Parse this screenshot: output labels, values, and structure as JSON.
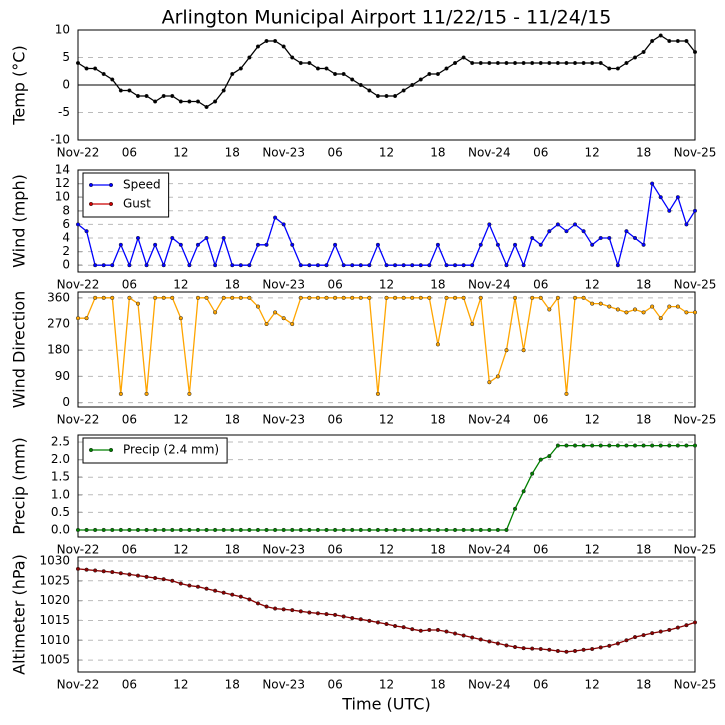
{
  "chart_data": [
    {
      "type": "line",
      "title": "Arlington Municipal Airport 11/22/15 - 11/24/15",
      "ylabel": "Temp (°C)",
      "categories": [
        "Nov-22",
        null,
        null,
        null,
        null,
        null,
        "06",
        null,
        null,
        null,
        null,
        null,
        "12",
        null,
        null,
        null,
        null,
        null,
        "18",
        null,
        null,
        null,
        null,
        null,
        "Nov-23",
        null,
        null,
        null,
        null,
        null,
        "06",
        null,
        null,
        null,
        null,
        null,
        "12",
        null,
        null,
        null,
        null,
        null,
        "18",
        null,
        null,
        null,
        null,
        null,
        "Nov-24",
        null,
        null,
        null,
        null,
        null,
        "06",
        null,
        null,
        null,
        null,
        null,
        "12",
        null,
        null,
        null,
        null,
        null,
        "18",
        null,
        null,
        null,
        null,
        null,
        "Nov-25"
      ],
      "values": [
        4,
        3,
        3,
        2,
        1,
        -1,
        -1,
        -2,
        -2,
        -3,
        -2,
        -2,
        -3,
        -3,
        -3,
        -4,
        -3,
        -1,
        2,
        3,
        5,
        7,
        8,
        8,
        7,
        5,
        4,
        4,
        3,
        3,
        2,
        2,
        1,
        0,
        -1,
        -2,
        -2,
        -2,
        -1,
        0,
        1,
        2,
        2,
        3,
        4,
        5,
        4,
        4,
        4,
        4,
        4,
        4,
        4,
        4,
        4,
        4,
        4,
        4,
        4,
        4,
        4,
        4,
        3,
        3,
        4,
        5,
        6,
        8,
        9,
        8,
        8,
        8,
        6
      ],
      "color": "#000000",
      "ylim": [
        -10,
        10
      ],
      "yticks": [
        -10,
        -5,
        0,
        5,
        10
      ],
      "grid": "y",
      "zero_line": true
    },
    {
      "type": "line",
      "ylabel": "Wind (mph)",
      "categories": [
        "Nov-22",
        null,
        null,
        null,
        null,
        null,
        "06",
        null,
        null,
        null,
        null,
        null,
        "12",
        null,
        null,
        null,
        null,
        null,
        "18",
        null,
        null,
        null,
        null,
        null,
        "Nov-23",
        null,
        null,
        null,
        null,
        null,
        "06",
        null,
        null,
        null,
        null,
        null,
        "12",
        null,
        null,
        null,
        null,
        null,
        "18",
        null,
        null,
        null,
        null,
        null,
        "Nov-24",
        null,
        null,
        null,
        null,
        null,
        "06",
        null,
        null,
        null,
        null,
        null,
        "12",
        null,
        null,
        null,
        null,
        null,
        "18",
        null,
        null,
        null,
        null,
        null,
        "Nov-25"
      ],
      "series": [
        {
          "name": "Speed",
          "color": "#0000ff",
          "values": [
            6,
            5,
            0,
            0,
            0,
            3,
            0,
            4,
            0,
            3,
            0,
            4,
            3,
            0,
            3,
            4,
            0,
            4,
            0,
            0,
            0,
            3,
            3,
            7,
            6,
            3,
            0,
            0,
            0,
            0,
            3,
            0,
            0,
            0,
            0,
            3,
            0,
            0,
            0,
            0,
            0,
            0,
            3,
            0,
            0,
            0,
            0,
            3,
            6,
            3,
            0,
            3,
            0,
            4,
            3,
            5,
            6,
            5,
            6,
            5,
            3,
            4,
            4,
            0,
            5,
            4,
            3,
            12,
            10,
            8,
            10,
            6,
            8
          ]
        },
        {
          "name": "Gust",
          "color": "#cc0000",
          "values": [
            null,
            null,
            null,
            null,
            null,
            null,
            null,
            null,
            null,
            null,
            null,
            null,
            null,
            null,
            null,
            null,
            null,
            null,
            null,
            null,
            null,
            null,
            null,
            null,
            null,
            null,
            null,
            null,
            null,
            null,
            null,
            null,
            null,
            null,
            null,
            null,
            null,
            null,
            null,
            null,
            null,
            null,
            null,
            null,
            null,
            null,
            null,
            null,
            null,
            null,
            null,
            null,
            null,
            null,
            null,
            null,
            null,
            null,
            null,
            null,
            null,
            null,
            null,
            null,
            null,
            null,
            null,
            null,
            null,
            null,
            null,
            null,
            null
          ]
        }
      ],
      "ylim": [
        -1,
        14
      ],
      "yticks": [
        0,
        2,
        4,
        6,
        8,
        10,
        12,
        14
      ],
      "grid": "y",
      "legend": "upper left"
    },
    {
      "type": "line",
      "ylabel": "Wind Direction",
      "categories": [
        "Nov-22",
        null,
        null,
        null,
        null,
        null,
        "06",
        null,
        null,
        null,
        null,
        null,
        "12",
        null,
        null,
        null,
        null,
        null,
        "18",
        null,
        null,
        null,
        null,
        null,
        "Nov-23",
        null,
        null,
        null,
        null,
        null,
        "06",
        null,
        null,
        null,
        null,
        null,
        "12",
        null,
        null,
        null,
        null,
        null,
        "18",
        null,
        null,
        null,
        null,
        null,
        "Nov-24",
        null,
        null,
        null,
        null,
        null,
        "06",
        null,
        null,
        null,
        null,
        null,
        "12",
        null,
        null,
        null,
        null,
        null,
        "18",
        null,
        null,
        null,
        null,
        null,
        "Nov-25"
      ],
      "values": [
        290,
        290,
        360,
        360,
        360,
        30,
        360,
        340,
        30,
        360,
        360,
        360,
        290,
        30,
        360,
        360,
        310,
        360,
        360,
        360,
        360,
        330,
        270,
        310,
        290,
        270,
        360,
        360,
        360,
        360,
        360,
        360,
        360,
        360,
        360,
        30,
        360,
        360,
        360,
        360,
        360,
        360,
        200,
        360,
        360,
        360,
        270,
        360,
        70,
        90,
        180,
        360,
        180,
        360,
        360,
        320,
        360,
        30,
        360,
        360,
        340,
        340,
        330,
        320,
        310,
        320,
        310,
        330,
        290,
        330,
        330,
        310,
        310
      ],
      "color": "#ffa500",
      "ylim": [
        -15,
        380
      ],
      "yticks": [
        0,
        90,
        180,
        270,
        360
      ],
      "grid": "y"
    },
    {
      "type": "line",
      "ylabel": "Precip (mm)",
      "categories": [
        "Nov-22",
        null,
        null,
        null,
        null,
        null,
        "06",
        null,
        null,
        null,
        null,
        null,
        "12",
        null,
        null,
        null,
        null,
        null,
        "18",
        null,
        null,
        null,
        null,
        null,
        "Nov-23",
        null,
        null,
        null,
        null,
        null,
        "06",
        null,
        null,
        null,
        null,
        null,
        "12",
        null,
        null,
        null,
        null,
        null,
        "18",
        null,
        null,
        null,
        null,
        null,
        "Nov-24",
        null,
        null,
        null,
        null,
        null,
        "06",
        null,
        null,
        null,
        null,
        null,
        "12",
        null,
        null,
        null,
        null,
        null,
        "18",
        null,
        null,
        null,
        null,
        null,
        "Nov-25"
      ],
      "series": [
        {
          "name": "Precip (2.4 mm)",
          "color": "#008000",
          "values": [
            0,
            0,
            0,
            0,
            0,
            0,
            0,
            0,
            0,
            0,
            0,
            0,
            0,
            0,
            0,
            0,
            0,
            0,
            0,
            0,
            0,
            0,
            0,
            0,
            0,
            0,
            0,
            0,
            0,
            0,
            0,
            0,
            0,
            0,
            0,
            0,
            0,
            0,
            0,
            0,
            0,
            0,
            0,
            0,
            0,
            0,
            0,
            0,
            0,
            0,
            0,
            0.6,
            1.1,
            1.6,
            2.0,
            2.1,
            2.4,
            2.4,
            2.4,
            2.4,
            2.4,
            2.4,
            2.4,
            2.4,
            2.4,
            2.4,
            2.4,
            2.4,
            2.4,
            2.4,
            2.4,
            2.4,
            2.4
          ]
        }
      ],
      "ylim": [
        -0.2,
        2.7
      ],
      "yticks": [
        {
          "value": 0,
          "label": "0.0"
        },
        0.5,
        {
          "value": 1,
          "label": "1.0"
        },
        1.5,
        {
          "value": 2,
          "label": "2.0"
        },
        2.5
      ],
      "grid": "y",
      "legend": "upper left"
    },
    {
      "type": "line",
      "ylabel": "Altimeter (hPa)",
      "xlabel": "Time (UTC)",
      "categories": [
        "Nov-22",
        null,
        null,
        null,
        null,
        null,
        "06",
        null,
        null,
        null,
        null,
        null,
        "12",
        null,
        null,
        null,
        null,
        null,
        "18",
        null,
        null,
        null,
        null,
        null,
        "Nov-23",
        null,
        null,
        null,
        null,
        null,
        "06",
        null,
        null,
        null,
        null,
        null,
        "12",
        null,
        null,
        null,
        null,
        null,
        "18",
        null,
        null,
        null,
        null,
        null,
        "Nov-24",
        null,
        null,
        null,
        null,
        null,
        "06",
        null,
        null,
        null,
        null,
        null,
        "12",
        null,
        null,
        null,
        null,
        null,
        "18",
        null,
        null,
        null,
        null,
        null,
        "Nov-25"
      ],
      "values": [
        1028,
        1027.8,
        1027.6,
        1027.4,
        1027.2,
        1026.9,
        1026.6,
        1026.3,
        1026,
        1025.7,
        1025.4,
        1025,
        1024.3,
        1023.8,
        1023.5,
        1023,
        1022.5,
        1022,
        1021.5,
        1021,
        1020.3,
        1019.3,
        1018.5,
        1018,
        1017.8,
        1017.6,
        1017.3,
        1017,
        1016.8,
        1016.6,
        1016.4,
        1016,
        1015.6,
        1015.3,
        1014.9,
        1014.5,
        1014.1,
        1013.6,
        1013.3,
        1012.8,
        1012.4,
        1012.6,
        1012.6,
        1012.2,
        1011.7,
        1011.2,
        1010.7,
        1010.2,
        1009.7,
        1009.2,
        1008.7,
        1008.3,
        1008,
        1007.9,
        1007.8,
        1007.6,
        1007.3,
        1007.1,
        1007.3,
        1007.6,
        1007.8,
        1008.2,
        1008.6,
        1009.2,
        1010,
        1010.8,
        1011.3,
        1011.8,
        1012.2,
        1012.6,
        1013.2,
        1013.8,
        1014.5
      ],
      "color": "#8b0000",
      "ylim": [
        1002,
        1031
      ],
      "yticks": [
        1005,
        1010,
        1015,
        1020,
        1025,
        1030
      ],
      "grid": "y"
    }
  ]
}
